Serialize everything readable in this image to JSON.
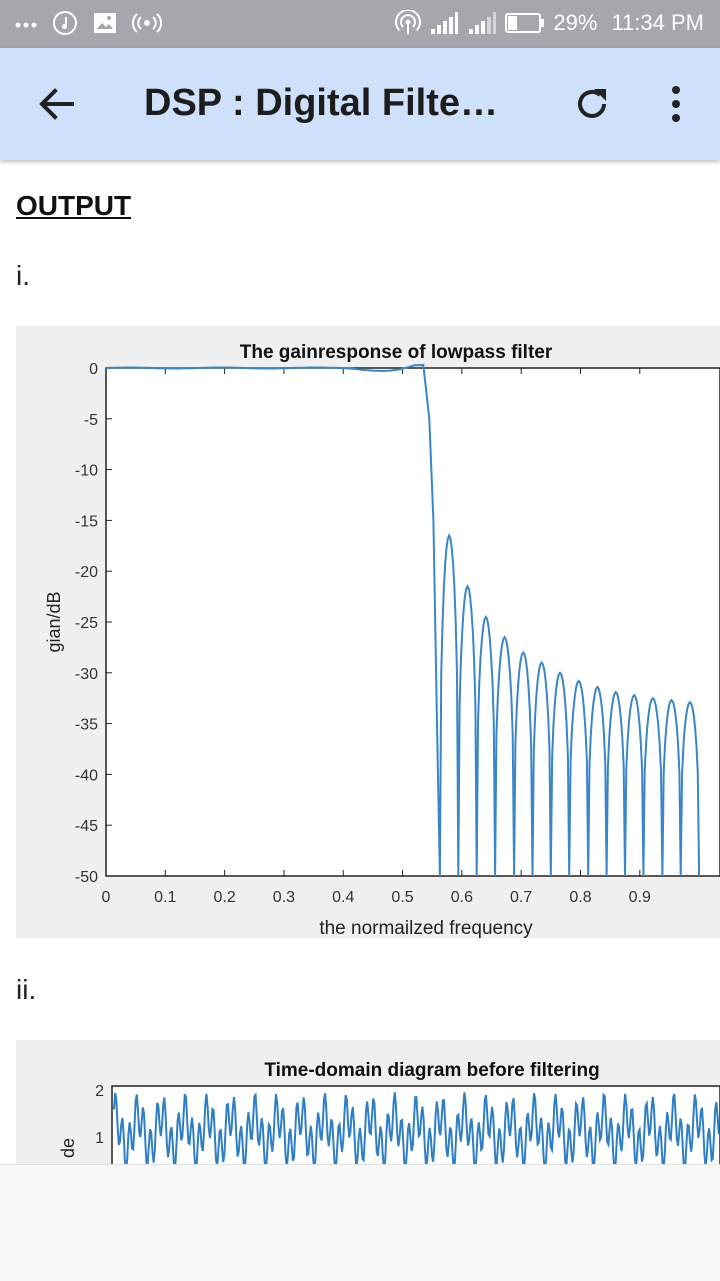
{
  "status_bar": {
    "battery": "29%",
    "time": "11:34 PM",
    "icons": [
      "more-dots-icon",
      "music-icon",
      "image-icon",
      "radio-icon",
      "hotspot-icon",
      "signal-icon",
      "signal-icon",
      "battery-icon"
    ]
  },
  "app_bar": {
    "title": "DSP : Digital Filter..."
  },
  "content": {
    "heading": "OUTPUT",
    "item1": "i.",
    "item2": "ii."
  },
  "chart_data": [
    {
      "type": "line",
      "title": "The gainresponse of lowpass filter",
      "xlabel": "the normailzed frequency",
      "ylabel": "gian/dB",
      "xlim": [
        0,
        1
      ],
      "ylim": [
        -50,
        0
      ],
      "xticks": [
        "0",
        "0.1",
        "0.2",
        "0.3",
        "0.4",
        "0.5",
        "0.6",
        "0.7",
        "0.8",
        "0.9"
      ],
      "yticks": [
        "0",
        "-5",
        "-10",
        "-15",
        "-20",
        "-25",
        "-30",
        "-35",
        "-40",
        "-45",
        "-50"
      ],
      "series_color": "#3a86c8",
      "passband_edge": 0.55,
      "stopband_nulls": [
        0.563,
        0.594,
        0.625,
        0.656,
        0.688,
        0.719,
        0.75,
        0.781,
        0.813,
        0.844,
        0.875,
        0.906,
        0.938,
        0.969,
        1.0
      ],
      "stopband_peaks": [
        {
          "x": 0.578,
          "y": -16.5
        },
        {
          "x": 0.609,
          "y": -21.5
        },
        {
          "x": 0.641,
          "y": -24.5
        },
        {
          "x": 0.672,
          "y": -26.5
        },
        {
          "x": 0.703,
          "y": -28
        },
        {
          "x": 0.734,
          "y": -29
        },
        {
          "x": 0.766,
          "y": -30
        },
        {
          "x": 0.797,
          "y": -30.8
        },
        {
          "x": 0.828,
          "y": -31.4
        },
        {
          "x": 0.859,
          "y": -31.9
        },
        {
          "x": 0.891,
          "y": -32.2
        },
        {
          "x": 0.922,
          "y": -32.5
        },
        {
          "x": 0.953,
          "y": -32.7
        },
        {
          "x": 0.984,
          "y": -32.9
        }
      ]
    },
    {
      "type": "line",
      "title": "Time-domain diagram before filtering",
      "ylabel": "de",
      "yticks": [
        "2",
        "1"
      ],
      "series_color": "#2f7fc4"
    }
  ]
}
